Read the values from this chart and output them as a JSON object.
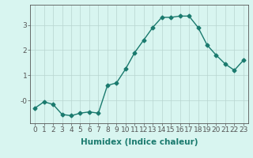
{
  "xlabel": "Humidex (Indice chaleur)",
  "x": [
    0,
    1,
    2,
    3,
    4,
    5,
    6,
    7,
    8,
    9,
    10,
    11,
    12,
    13,
    14,
    15,
    16,
    17,
    18,
    19,
    20,
    21,
    22,
    23
  ],
  "y": [
    -0.3,
    -0.05,
    -0.15,
    -0.55,
    -0.6,
    -0.5,
    -0.45,
    -0.5,
    0.6,
    0.7,
    1.25,
    1.9,
    2.4,
    2.9,
    3.3,
    3.3,
    3.35,
    3.35,
    2.9,
    2.2,
    1.8,
    1.45,
    1.2,
    1.6
  ],
  "line_color": "#1a7a6e",
  "marker": "D",
  "marker_size": 2.5,
  "bg_color": "#d8f5f0",
  "grid_color": "#b8d4d0",
  "axis_color": "#555555",
  "ylim": [
    -0.9,
    3.8
  ],
  "xlim": [
    -0.5,
    23.5
  ],
  "yticks": [
    0,
    1,
    2,
    3
  ],
  "ytick_labels": [
    "-0",
    "1",
    "2",
    "3"
  ],
  "xticks": [
    0,
    1,
    2,
    3,
    4,
    5,
    6,
    7,
    8,
    9,
    10,
    11,
    12,
    13,
    14,
    15,
    16,
    17,
    18,
    19,
    20,
    21,
    22,
    23
  ],
  "xtick_labels": [
    "0",
    "1",
    "2",
    "3",
    "4",
    "5",
    "6",
    "7",
    "8",
    "9",
    "10",
    "11",
    "12",
    "13",
    "14",
    "15",
    "16",
    "17",
    "18",
    "19",
    "20",
    "21",
    "22",
    "23"
  ],
  "xlabel_fontsize": 7.5,
  "tick_fontsize": 6.5,
  "line_width": 1.0
}
